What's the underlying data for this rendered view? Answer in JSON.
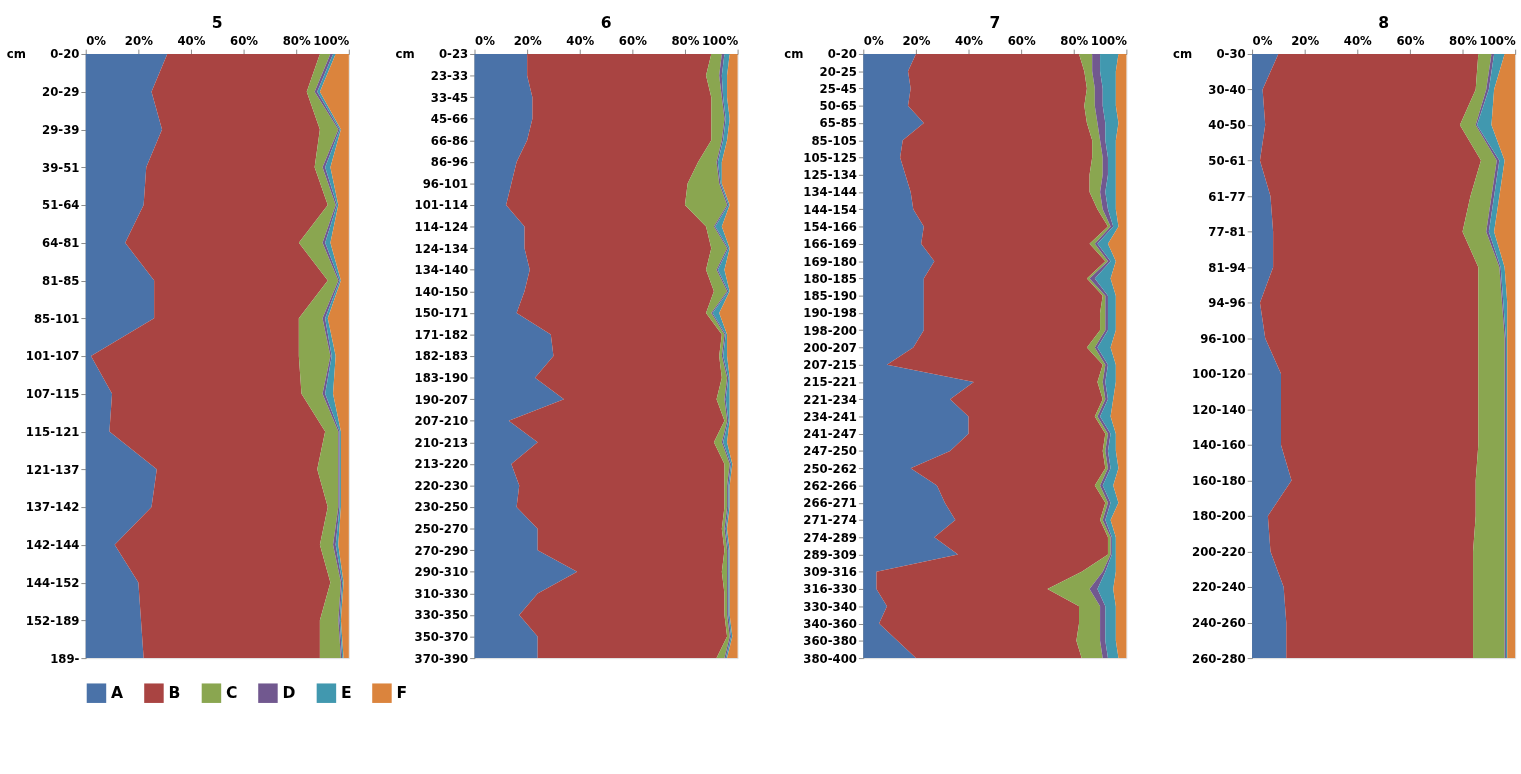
{
  "chart_data": [
    {
      "type": "area",
      "orientation": "horizontal",
      "stacked": true,
      "title": "5",
      "ylabel": "cm",
      "legend": "bottom",
      "xlim": [
        0,
        100
      ],
      "xticks": [
        {
          "value": 0,
          "label": "0%"
        },
        {
          "value": 20,
          "label": "20%"
        },
        {
          "value": 40,
          "label": "40%"
        },
        {
          "value": 60,
          "label": "60%"
        },
        {
          "value": 80,
          "label": "80%"
        },
        {
          "value": 100,
          "label": "100%"
        }
      ],
      "categories": [
        "0-20",
        "20-29",
        "29-39",
        "39-51",
        "51-64",
        "64-81",
        "81-85",
        "85-101",
        "101-107",
        "107-115",
        "115-121",
        "121-137",
        "137-142",
        "142-144",
        "144-152",
        "152-189",
        "189-"
      ],
      "series": [
        {
          "name": "A",
          "color": "#4a72a8",
          "values": [
            31,
            25,
            29,
            23,
            22,
            15,
            26,
            26,
            2,
            10,
            9,
            27,
            25,
            11,
            20,
            21,
            22
          ]
        },
        {
          "name": "B",
          "color": "#a94442",
          "values": [
            58,
            59,
            60,
            64,
            70,
            66,
            66,
            55,
            79,
            72,
            82,
            61,
            67,
            78,
            73,
            68,
            67
          ]
        },
        {
          "name": "C",
          "color": "#8aa650",
          "values": [
            4,
            3,
            7,
            3,
            3,
            9,
            4,
            9,
            12,
            8,
            5,
            8,
            4,
            5,
            4,
            7,
            8
          ]
        },
        {
          "name": "D",
          "color": "#71588f",
          "values": [
            1,
            1,
            0.5,
            1,
            0.5,
            1,
            0.5,
            1,
            0.5,
            1,
            0.5,
            0.5,
            0.5,
            1,
            0.5,
            0.5,
            0.5
          ]
        },
        {
          "name": "E",
          "color": "#4198af",
          "values": [
            1,
            1,
            0.5,
            2,
            0.5,
            2,
            0.5,
            1,
            1.5,
            3,
            0.5,
            0.5,
            0.5,
            1,
            0.5,
            0.5,
            0.5
          ]
        },
        {
          "name": "F",
          "color": "#db843d",
          "values": [
            5,
            11,
            3,
            7,
            4,
            7,
            3,
            8,
            5,
            6,
            3,
            3,
            3,
            4,
            2,
            3,
            2
          ]
        }
      ]
    },
    {
      "type": "area",
      "orientation": "horizontal",
      "stacked": true,
      "title": "6",
      "ylabel": "cm",
      "legend": "bottom",
      "xlim": [
        0,
        100
      ],
      "xticks": [
        {
          "value": 0,
          "label": "0%"
        },
        {
          "value": 20,
          "label": "20%"
        },
        {
          "value": 40,
          "label": "40%"
        },
        {
          "value": 60,
          "label": "60%"
        },
        {
          "value": 80,
          "label": "80%"
        },
        {
          "value": 100,
          "label": "100%"
        }
      ],
      "categories": [
        "0-23",
        "23-33",
        "33-45",
        "45-66",
        "66-86",
        "86-96",
        "96-101",
        "101-114",
        "114-124",
        "124-134",
        "134-140",
        "140-150",
        "150-171",
        "171-182",
        "182-183",
        "183-190",
        "190-207",
        "207-210",
        "210-213",
        "213-220",
        "220-230",
        "230-250",
        "250-270",
        "270-290",
        "290-310",
        "310-330",
        "330-350",
        "350-370",
        "370-390"
      ],
      "series": [
        {
          "name": "A",
          "color": "#4a72a8",
          "values": [
            20,
            20,
            22,
            22,
            20,
            16,
            14,
            12,
            19,
            19,
            21,
            19,
            16,
            29,
            30,
            23,
            34,
            13,
            24,
            14,
            17,
            16,
            24,
            24,
            39,
            24,
            17,
            24,
            24
          ]
        },
        {
          "name": "B",
          "color": "#a94442",
          "values": [
            70,
            68,
            68,
            68,
            70,
            69,
            67,
            68,
            69,
            71,
            67,
            72,
            72,
            65,
            63,
            71,
            58,
            82,
            67,
            81,
            78,
            79,
            70,
            71,
            55,
            71,
            78,
            72,
            68
          ]
        },
        {
          "name": "C",
          "color": "#8aa650",
          "values": [
            4,
            5,
            4,
            5,
            4,
            7,
            12,
            16,
            3,
            6,
            4,
            5,
            2,
            1,
            1,
            2,
            3,
            1,
            3,
            2,
            1,
            1,
            1,
            1,
            2,
            1,
            1,
            1,
            3
          ]
        },
        {
          "name": "D",
          "color": "#71588f",
          "values": [
            1,
            1,
            0.5,
            0.5,
            0.5,
            0.5,
            0.5,
            0.5,
            0.5,
            0.5,
            0.5,
            0.5,
            0.5,
            0.5,
            0.5,
            0.5,
            0.5,
            0.5,
            0.5,
            0.5,
            0.5,
            0.5,
            0.5,
            0.5,
            0.5,
            0.5,
            0.5,
            0.5,
            0.5
          ]
        },
        {
          "name": "E",
          "color": "#4198af",
          "values": [
            2,
            2,
            1.5,
            1.5,
            1.5,
            1.5,
            0.5,
            0.5,
            2.5,
            0.5,
            2.5,
            0.5,
            2.5,
            0.5,
            1.5,
            0.5,
            1.5,
            0.5,
            1.5,
            0.5,
            0.5,
            0.5,
            0.5,
            0.5,
            0.5,
            0.5,
            0.5,
            0.5,
            0.5
          ]
        },
        {
          "name": "F",
          "color": "#db843d",
          "values": [
            3,
            4,
            4,
            3,
            4,
            6,
            6,
            3,
            6,
            3,
            5,
            3,
            7,
            4,
            4,
            3,
            3,
            3,
            4,
            2,
            3,
            3,
            4,
            3,
            3,
            3,
            3,
            2,
            4
          ]
        }
      ]
    },
    {
      "type": "area",
      "orientation": "horizontal",
      "stacked": true,
      "title": "7",
      "ylabel": "cm",
      "legend": "bottom",
      "xlim": [
        0,
        100
      ],
      "xticks": [
        {
          "value": 0,
          "label": "0%"
        },
        {
          "value": 20,
          "label": "20%"
        },
        {
          "value": 40,
          "label": "40%"
        },
        {
          "value": 60,
          "label": "60%"
        },
        {
          "value": 80,
          "label": "80%"
        },
        {
          "value": 100,
          "label": "100%"
        }
      ],
      "categories": [
        "0-20",
        "20-25",
        "25-45",
        "50-65",
        "65-85",
        "85-105",
        "105-125",
        "125-134",
        "134-144",
        "144-154",
        "154-166",
        "166-169",
        "169-180",
        "180-185",
        "185-190",
        "190-198",
        "198-200",
        "200-207",
        "207-215",
        "215-221",
        "221-234",
        "234-241",
        "241-247",
        "247-250",
        "250-262",
        "262-266",
        "266-271",
        "271-274",
        "274-289",
        "289-309",
        "309-316",
        "316-330",
        "330-340",
        "340-360",
        "360-380",
        "380-400"
      ],
      "series": [
        {
          "name": "A",
          "color": "#4a72a8",
          "values": [
            20,
            17,
            18,
            17,
            23,
            15,
            14,
            16,
            18,
            19,
            23,
            22,
            27,
            23,
            23,
            23,
            23,
            19,
            9,
            42,
            33,
            40,
            40,
            33,
            18,
            28,
            31,
            35,
            27,
            36,
            5,
            5,
            9,
            6,
            13,
            20
          ]
        },
        {
          "name": "B",
          "color": "#a94442",
          "values": [
            62,
            67,
            67,
            67,
            62,
            72,
            73,
            70,
            68,
            70,
            70,
            64,
            65,
            62,
            68,
            67,
            67,
            66,
            82,
            47,
            58,
            48,
            52,
            58,
            74,
            60,
            61,
            55,
            66,
            57,
            78,
            65,
            73,
            76,
            68,
            63
          ]
        },
        {
          "name": "C",
          "color": "#8aa650",
          "values": [
            5,
            3,
            3,
            4,
            4,
            3,
            4,
            5,
            4,
            2,
            1,
            2,
            1,
            1,
            1,
            2,
            2,
            3,
            1,
            2,
            1,
            1,
            1,
            1,
            1,
            2,
            1,
            1,
            1,
            1,
            8,
            16,
            8,
            8,
            9,
            8
          ]
        },
        {
          "name": "D",
          "color": "#71588f",
          "values": [
            3,
            3,
            3,
            3,
            3,
            2,
            2,
            2,
            2,
            2,
            1,
            1,
            1,
            2,
            1,
            1,
            1,
            1,
            1,
            1,
            1,
            1,
            1,
            1,
            1,
            1,
            1,
            1,
            0.5,
            0.5,
            1,
            3,
            2,
            2,
            2,
            2
          ]
        },
        {
          "name": "E",
          "color": "#4198af",
          "values": [
            7,
            6,
            5,
            5,
            5,
            4,
            3,
            3,
            4,
            3,
            2,
            4,
            2,
            6,
            3,
            3,
            3,
            5,
            3,
            4,
            2,
            4,
            2,
            3,
            3,
            4,
            3,
            2,
            1.5,
            1.5,
            4,
            6,
            4,
            4,
            4,
            4
          ]
        },
        {
          "name": "F",
          "color": "#db843d",
          "values": [
            3,
            4,
            4,
            4,
            3,
            4,
            4,
            4,
            4,
            4,
            3,
            7,
            4,
            6,
            4,
            4,
            4,
            6,
            4,
            4,
            5,
            6,
            4,
            4,
            3,
            5,
            3,
            6,
            4,
            4,
            4,
            5,
            4,
            4,
            4,
            3
          ]
        }
      ]
    },
    {
      "type": "area",
      "orientation": "horizontal",
      "stacked": true,
      "title": "8",
      "ylabel": "cm",
      "legend": "bottom",
      "xlim": [
        0,
        100
      ],
      "xticks": [
        {
          "value": 0,
          "label": "0%"
        },
        {
          "value": 20,
          "label": "20%"
        },
        {
          "value": 40,
          "label": "40%"
        },
        {
          "value": 60,
          "label": "60%"
        },
        {
          "value": 80,
          "label": "80%"
        },
        {
          "value": 100,
          "label": "100%"
        }
      ],
      "categories": [
        "0-30",
        "30-40",
        "40-50",
        "50-61",
        "61-77",
        "77-81",
        "81-94",
        "94-96",
        "96-100",
        "100-120",
        "120-140",
        "140-160",
        "160-180",
        "180-200",
        "200-220",
        "220-240",
        "240-260",
        "260-280"
      ],
      "series": [
        {
          "name": "A",
          "color": "#4a72a8",
          "values": [
            10,
            4,
            5,
            3,
            7,
            8,
            8,
            3,
            5,
            11,
            11,
            11,
            15,
            6,
            7,
            12,
            13,
            13
          ]
        },
        {
          "name": "B",
          "color": "#a94442",
          "values": [
            76,
            81,
            74,
            84,
            76,
            72,
            78,
            83,
            81,
            75,
            75,
            75,
            70,
            79,
            77,
            72,
            71,
            71
          ]
        },
        {
          "name": "C",
          "color": "#8aa650",
          "values": [
            5,
            4,
            6,
            6,
            8,
            9,
            8,
            9,
            10,
            10,
            10,
            10,
            11,
            11,
            12,
            12,
            12,
            12
          ]
        },
        {
          "name": "D",
          "color": "#71588f",
          "values": [
            1,
            1,
            0.5,
            1,
            1,
            1,
            0.5,
            0.5,
            0.5,
            0.5,
            0.5,
            0.5,
            0.5,
            0.5,
            0.5,
            0.5,
            0.5,
            0.5
          ]
        },
        {
          "name": "E",
          "color": "#4198af",
          "values": [
            4,
            2,
            5.5,
            2,
            2,
            2,
            1.5,
            1.5,
            0.5,
            0.5,
            0.5,
            0.5,
            0.5,
            0.5,
            0.5,
            0.5,
            0.5,
            0.5
          ]
        },
        {
          "name": "F",
          "color": "#db843d",
          "values": [
            4,
            8,
            9,
            4,
            6,
            8,
            4,
            3,
            3,
            3,
            3,
            3,
            3,
            3,
            3,
            3,
            3,
            3
          ]
        }
      ]
    }
  ]
}
